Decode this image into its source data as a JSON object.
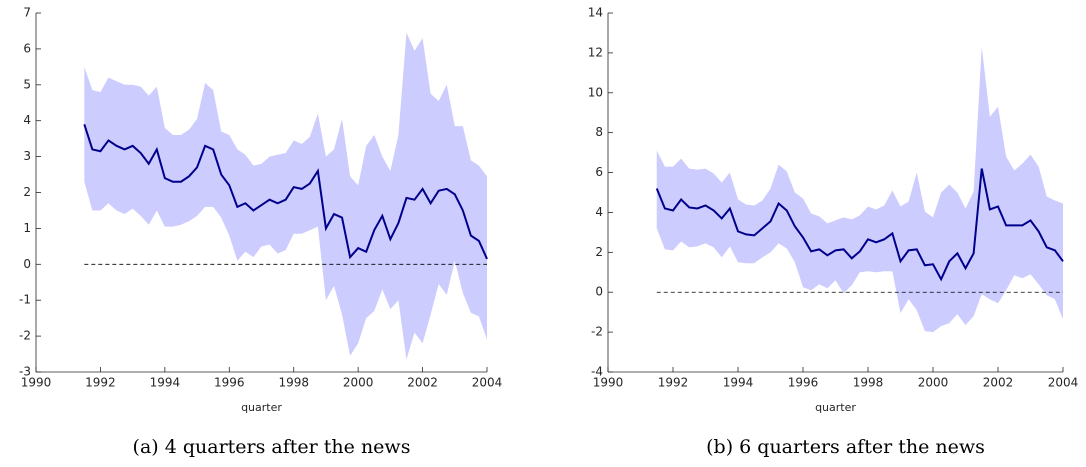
{
  "chart_data": [
    {
      "type": "band-line",
      "caption": "(a) 4 quarters after the news",
      "xlabel": "quarter",
      "x": [
        1991.5,
        1991.75,
        1992,
        1992.25,
        1992.5,
        1992.75,
        1993,
        1993.25,
        1993.5,
        1993.75,
        1994,
        1994.25,
        1994.5,
        1994.75,
        1995,
        1995.25,
        1995.5,
        1995.75,
        1996,
        1996.25,
        1996.5,
        1996.75,
        1997,
        1997.25,
        1997.5,
        1997.75,
        1998,
        1998.25,
        1998.5,
        1998.75,
        1999,
        1999.25,
        1999.5,
        1999.75,
        2000,
        2000.25,
        2000.5,
        2000.75,
        2001,
        2001.25,
        2001.5,
        2001.75,
        2002,
        2002.25,
        2002.5,
        2002.75,
        2003,
        2003.25,
        2003.5,
        2003.75,
        2004
      ],
      "values": [
        3.9,
        3.2,
        3.15,
        3.45,
        3.3,
        3.2,
        3.3,
        3.1,
        2.8,
        3.2,
        2.4,
        2.3,
        2.3,
        2.45,
        2.7,
        3.3,
        3.2,
        2.5,
        2.2,
        1.6,
        1.7,
        1.5,
        1.65,
        1.8,
        1.7,
        1.8,
        2.15,
        2.1,
        2.25,
        2.6,
        1.0,
        1.4,
        1.3,
        0.2,
        0.45,
        0.35,
        0.95,
        1.35,
        0.7,
        1.15,
        1.85,
        1.8,
        2.1,
        1.7,
        2.05,
        2.1,
        1.95,
        1.5,
        0.8,
        0.65,
        0.15
      ],
      "band_upper": [
        5.5,
        4.85,
        4.8,
        5.2,
        5.1,
        5.0,
        5.0,
        4.95,
        4.7,
        4.95,
        3.8,
        3.6,
        3.6,
        3.75,
        4.05,
        5.05,
        4.85,
        3.7,
        3.6,
        3.2,
        3.05,
        2.75,
        2.8,
        3.0,
        3.05,
        3.1,
        3.45,
        3.35,
        3.55,
        4.2,
        3.0,
        3.2,
        4.05,
        2.45,
        2.2,
        3.3,
        3.6,
        3.0,
        2.6,
        3.6,
        6.45,
        5.95,
        6.3,
        4.75,
        4.55,
        5.0,
        3.85,
        3.85,
        2.9,
        2.75,
        2.45
      ],
      "band_lower": [
        2.3,
        1.5,
        1.5,
        1.7,
        1.5,
        1.4,
        1.55,
        1.35,
        1.1,
        1.5,
        1.05,
        1.05,
        1.1,
        1.2,
        1.35,
        1.6,
        1.6,
        1.3,
        0.8,
        0.1,
        0.35,
        0.2,
        0.5,
        0.55,
        0.3,
        0.4,
        0.85,
        0.85,
        0.95,
        1.05,
        -1.0,
        -0.6,
        -1.4,
        -2.55,
        -2.2,
        -1.5,
        -1.3,
        -0.7,
        -1.25,
        -1.0,
        -2.65,
        -1.9,
        -2.2,
        -1.4,
        -0.55,
        -0.85,
        0.1,
        -0.8,
        -1.35,
        -1.45,
        -2.1
      ],
      "color": "#00008b",
      "band_color": "#ccccff",
      "reference_line": 0,
      "xlim": [
        1990,
        2004
      ],
      "xticks": [
        1990,
        1992,
        1994,
        1996,
        1998,
        2000,
        2002,
        2004
      ],
      "ylim": [
        -3,
        7
      ],
      "yticks": [
        -3,
        -2,
        -1,
        0,
        1,
        2,
        3,
        4,
        5,
        6,
        7
      ]
    },
    {
      "type": "band-line",
      "caption": "(b) 6 quarters after the news",
      "xlabel": "quarter",
      "x": [
        1991.5,
        1991.75,
        1992,
        1992.25,
        1992.5,
        1992.75,
        1993,
        1993.25,
        1993.5,
        1993.75,
        1994,
        1994.25,
        1994.5,
        1994.75,
        1995,
        1995.25,
        1995.5,
        1995.75,
        1996,
        1996.25,
        1996.5,
        1996.75,
        1997,
        1997.25,
        1997.5,
        1997.75,
        1998,
        1998.25,
        1998.5,
        1998.75,
        1999,
        1999.25,
        1999.5,
        1999.75,
        2000,
        2000.25,
        2000.5,
        2000.75,
        2001,
        2001.25,
        2001.5,
        2001.75,
        2002,
        2002.25,
        2002.5,
        2002.75,
        2003,
        2003.25,
        2003.5,
        2003.75,
        2004
      ],
      "values": [
        5.2,
        4.2,
        4.1,
        4.65,
        4.25,
        4.2,
        4.35,
        4.1,
        3.7,
        4.2,
        3.05,
        2.9,
        2.85,
        3.2,
        3.55,
        4.45,
        4.1,
        3.3,
        2.75,
        2.05,
        2.15,
        1.85,
        2.1,
        2.15,
        1.7,
        2.05,
        2.65,
        2.5,
        2.65,
        2.95,
        1.55,
        2.1,
        2.15,
        1.35,
        1.4,
        0.65,
        1.55,
        1.95,
        1.2,
        1.95,
        6.2,
        4.15,
        4.3,
        3.35,
        3.35,
        3.35,
        3.6,
        3.05,
        2.25,
        2.1,
        1.55
      ],
      "band_upper": [
        7.1,
        6.3,
        6.3,
        6.7,
        6.2,
        6.15,
        6.2,
        5.95,
        5.5,
        6.0,
        4.65,
        4.4,
        4.35,
        4.6,
        5.2,
        6.4,
        6.05,
        5.0,
        4.7,
        3.95,
        3.8,
        3.45,
        3.6,
        3.75,
        3.65,
        3.85,
        4.3,
        4.15,
        4.35,
        5.1,
        4.3,
        4.55,
        6.0,
        4.05,
        3.75,
        5.0,
        5.4,
        5.0,
        4.2,
        5.05,
        12.3,
        8.8,
        9.3,
        6.8,
        6.1,
        6.45,
        6.9,
        6.3,
        4.8,
        4.6,
        4.45
      ],
      "band_lower": [
        3.2,
        2.15,
        2.1,
        2.55,
        2.25,
        2.3,
        2.45,
        2.25,
        1.75,
        2.3,
        1.5,
        1.45,
        1.45,
        1.75,
        2.0,
        2.45,
        2.2,
        1.5,
        0.25,
        0.1,
        0.4,
        0.2,
        0.6,
        -0.05,
        0.35,
        1.0,
        1.05,
        1.0,
        1.05,
        1.05,
        -1.05,
        -0.35,
        -0.9,
        -1.95,
        -2.0,
        -1.7,
        -1.55,
        -1.1,
        -1.65,
        -1.2,
        -0.1,
        -0.35,
        -0.55,
        0.1,
        0.85,
        0.7,
        0.9,
        0.4,
        -0.15,
        -0.35,
        -1.35
      ],
      "color": "#00008b",
      "band_color": "#ccccff",
      "reference_line": 0,
      "xlim": [
        1990,
        2004
      ],
      "xticks": [
        1990,
        1992,
        1994,
        1996,
        1998,
        2000,
        2002,
        2004
      ],
      "ylim": [
        -4,
        14
      ],
      "yticks": [
        -4,
        -2,
        0,
        2,
        4,
        6,
        8,
        10,
        12,
        14
      ]
    }
  ]
}
